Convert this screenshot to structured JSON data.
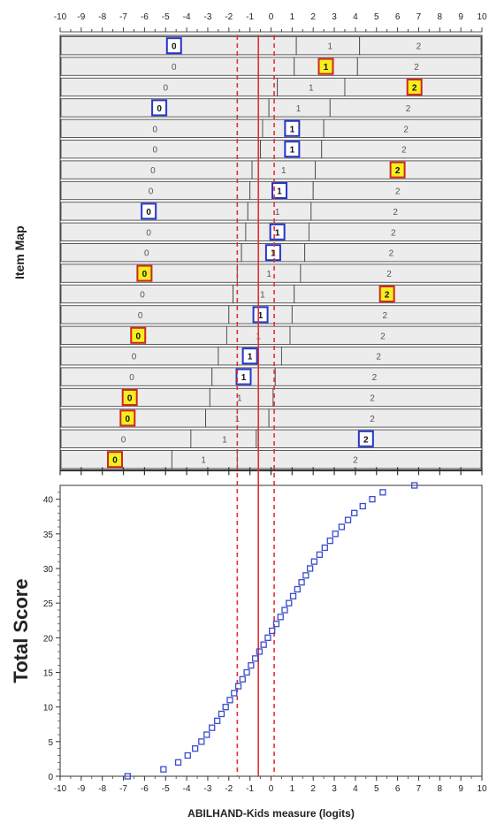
{
  "chart_data": [
    {
      "type": "table",
      "ylabel": "Item Map",
      "x_ticks": [
        "-10",
        "-9",
        "-8",
        "-7",
        "-6",
        "-5",
        "-4",
        "-3",
        "-2",
        "-1",
        "0",
        "1",
        "2",
        "3",
        "4",
        "5",
        "6",
        "7",
        "8",
        "9",
        "10"
      ],
      "xlim": [
        -10,
        10
      ],
      "reference_lines": [
        {
          "x": -0.6,
          "style": "solid"
        },
        {
          "x": -1.6,
          "style": "dashed"
        },
        {
          "x": 0.15,
          "style": "dashed"
        }
      ],
      "category_labels": [
        "0",
        "1",
        "2"
      ],
      "items": [
        {
          "b1": 1.2,
          "b2": 4.2,
          "pos": [
            -4.6,
            2.8,
            7.0
          ],
          "boxed": 0,
          "box_color": "blue"
        },
        {
          "b1": 1.1,
          "b2": 4.1,
          "pos": [
            -4.6,
            2.6,
            6.9
          ],
          "boxed": 1,
          "box_color": "yellow"
        },
        {
          "b1": 0.3,
          "b2": 3.5,
          "pos": [
            -5.0,
            1.9,
            6.8
          ],
          "boxed": 2,
          "box_color": "yellow"
        },
        {
          "b1": -0.1,
          "b2": 2.8,
          "pos": [
            -5.3,
            1.3,
            6.5
          ],
          "boxed": 0,
          "box_color": "blue"
        },
        {
          "b1": -0.4,
          "b2": 2.5,
          "pos": [
            -5.5,
            1.0,
            6.4
          ],
          "boxed": 1,
          "box_color": "blue"
        },
        {
          "b1": -0.5,
          "b2": 2.4,
          "pos": [
            -5.5,
            1.0,
            6.3
          ],
          "boxed": 1,
          "box_color": "blue"
        },
        {
          "b1": -0.9,
          "b2": 2.1,
          "pos": [
            -5.6,
            0.6,
            6.0
          ],
          "boxed": 2,
          "box_color": "yellow"
        },
        {
          "b1": -1.0,
          "b2": 2.0,
          "pos": [
            -5.7,
            0.4,
            6.0
          ],
          "boxed": 1,
          "box_color": "blue"
        },
        {
          "b1": -1.1,
          "b2": 1.9,
          "pos": [
            -5.8,
            0.3,
            5.9
          ],
          "boxed": 0,
          "box_color": "blue"
        },
        {
          "b1": -1.2,
          "b2": 1.8,
          "pos": [
            -5.8,
            0.3,
            5.8
          ],
          "boxed": 1,
          "box_color": "blue"
        },
        {
          "b1": -1.4,
          "b2": 1.6,
          "pos": [
            -5.9,
            0.1,
            5.7
          ],
          "boxed": 1,
          "box_color": "blue"
        },
        {
          "b1": -1.6,
          "b2": 1.4,
          "pos": [
            -6.0,
            -0.1,
            5.6
          ],
          "boxed": 0,
          "box_color": "yellow"
        },
        {
          "b1": -1.8,
          "b2": 1.1,
          "pos": [
            -6.1,
            -0.4,
            5.5
          ],
          "boxed": 2,
          "box_color": "yellow"
        },
        {
          "b1": -2.0,
          "b2": 1.0,
          "pos": [
            -6.2,
            -0.5,
            5.4
          ],
          "boxed": 1,
          "box_color": "blue"
        },
        {
          "b1": -2.1,
          "b2": 0.9,
          "pos": [
            -6.3,
            -0.6,
            5.3
          ],
          "boxed": 0,
          "box_color": "yellow"
        },
        {
          "b1": -2.5,
          "b2": 0.5,
          "pos": [
            -6.5,
            -1.0,
            5.1
          ],
          "boxed": 1,
          "box_color": "blue"
        },
        {
          "b1": -2.8,
          "b2": 0.2,
          "pos": [
            -6.6,
            -1.3,
            4.9
          ],
          "boxed": 1,
          "box_color": "blue"
        },
        {
          "b1": -2.9,
          "b2": 0.1,
          "pos": [
            -6.7,
            -1.5,
            4.8
          ],
          "boxed": 0,
          "box_color": "yellow"
        },
        {
          "b1": -3.1,
          "b2": -0.1,
          "pos": [
            -6.8,
            -1.6,
            4.8
          ],
          "boxed": 0,
          "box_color": "yellow"
        },
        {
          "b1": -3.8,
          "b2": -0.7,
          "pos": [
            -7.0,
            -2.2,
            4.5
          ],
          "boxed": 2,
          "box_color": "blue"
        },
        {
          "b1": -4.7,
          "b2": -1.6,
          "pos": [
            -7.4,
            -3.2,
            4.0
          ],
          "boxed": 0,
          "box_color": "yellow"
        }
      ]
    },
    {
      "type": "scatter",
      "xlabel": "ABILHAND-Kids measure (logits)",
      "ylabel": "Total Score",
      "xlim": [
        -10,
        10
      ],
      "ylim": [
        0,
        42
      ],
      "x_ticks": [
        "-10",
        "-9",
        "-8",
        "-7",
        "-6",
        "-5",
        "-4",
        "-3",
        "-2",
        "-1",
        "0",
        "1",
        "2",
        "3",
        "4",
        "5",
        "6",
        "7",
        "8",
        "9",
        "10"
      ],
      "y_ticks": [
        "0",
        "5",
        "10",
        "15",
        "20",
        "25",
        "30",
        "35",
        "40"
      ],
      "marker": "open-square",
      "marker_color": "#3a4ccc",
      "points": [
        {
          "x": -6.8,
          "y": 0
        },
        {
          "x": -5.1,
          "y": 1
        },
        {
          "x": -4.4,
          "y": 2
        },
        {
          "x": -3.95,
          "y": 3
        },
        {
          "x": -3.6,
          "y": 4
        },
        {
          "x": -3.3,
          "y": 5
        },
        {
          "x": -3.05,
          "y": 6
        },
        {
          "x": -2.8,
          "y": 7
        },
        {
          "x": -2.55,
          "y": 8
        },
        {
          "x": -2.35,
          "y": 9
        },
        {
          "x": -2.15,
          "y": 10
        },
        {
          "x": -1.95,
          "y": 11
        },
        {
          "x": -1.75,
          "y": 12
        },
        {
          "x": -1.55,
          "y": 13
        },
        {
          "x": -1.35,
          "y": 14
        },
        {
          "x": -1.15,
          "y": 15
        },
        {
          "x": -0.95,
          "y": 16
        },
        {
          "x": -0.75,
          "y": 17
        },
        {
          "x": -0.55,
          "y": 18
        },
        {
          "x": -0.35,
          "y": 19
        },
        {
          "x": -0.15,
          "y": 20
        },
        {
          "x": 0.05,
          "y": 21
        },
        {
          "x": 0.25,
          "y": 22
        },
        {
          "x": 0.45,
          "y": 23
        },
        {
          "x": 0.65,
          "y": 24
        },
        {
          "x": 0.85,
          "y": 25
        },
        {
          "x": 1.05,
          "y": 26
        },
        {
          "x": 1.25,
          "y": 27
        },
        {
          "x": 1.45,
          "y": 28
        },
        {
          "x": 1.65,
          "y": 29
        },
        {
          "x": 1.85,
          "y": 30
        },
        {
          "x": 2.05,
          "y": 31
        },
        {
          "x": 2.3,
          "y": 32
        },
        {
          "x": 2.55,
          "y": 33
        },
        {
          "x": 2.8,
          "y": 34
        },
        {
          "x": 3.05,
          "y": 35
        },
        {
          "x": 3.35,
          "y": 36
        },
        {
          "x": 3.65,
          "y": 37
        },
        {
          "x": 3.95,
          "y": 38
        },
        {
          "x": 4.35,
          "y": 39
        },
        {
          "x": 4.8,
          "y": 40
        },
        {
          "x": 5.3,
          "y": 41
        },
        {
          "x": 6.8,
          "y": 42
        }
      ],
      "reference_lines": [
        {
          "x": -0.6,
          "style": "solid"
        },
        {
          "x": -1.6,
          "style": "dashed"
        },
        {
          "x": 0.15,
          "style": "dashed"
        }
      ]
    }
  ],
  "colors": {
    "bar_fill": "#ececec",
    "bar_stroke": "#4a4a4a",
    "ref_line": "#e23030",
    "box_blue": "#2536c8",
    "box_yellow_fill": "#f6ee1e",
    "box_yellow_stroke": "#d0281e",
    "marker": "#3a4ccc"
  }
}
